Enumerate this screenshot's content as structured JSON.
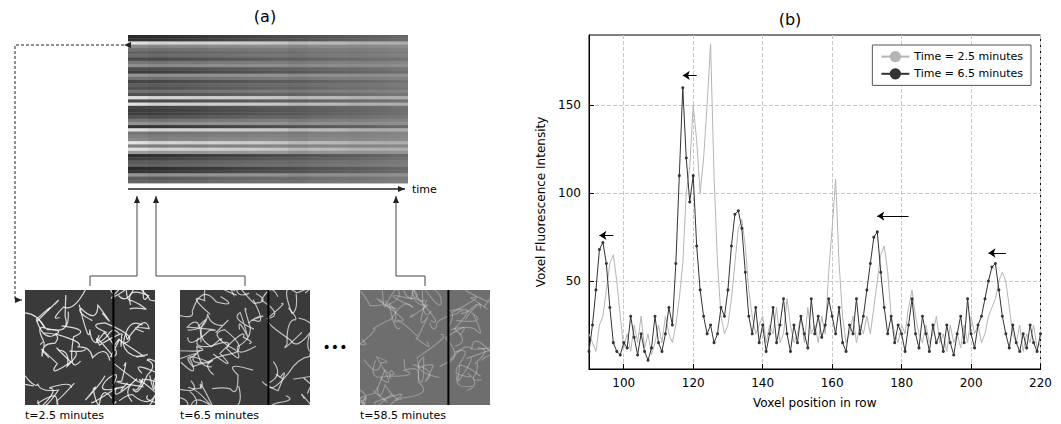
{
  "panel_a": {
    "label": "(a)",
    "axis_label": "time",
    "captions": [
      "t=2.5 minutes",
      "t=6.5 minutes",
      "t=58.5 minutes"
    ],
    "ellipsis": "•••"
  },
  "chart_data": {
    "type": "line",
    "title": "(b)",
    "x_label": "Voxel position in row",
    "y_label": "Voxel Fluorescence Intensity",
    "x": [
      90,
      91,
      92,
      93,
      94,
      95,
      96,
      97,
      98,
      99,
      100,
      101,
      102,
      103,
      104,
      105,
      106,
      107,
      108,
      109,
      110,
      111,
      112,
      113,
      114,
      115,
      116,
      117,
      118,
      119,
      120,
      121,
      122,
      123,
      124,
      125,
      126,
      127,
      128,
      129,
      130,
      131,
      132,
      133,
      134,
      135,
      136,
      137,
      138,
      139,
      140,
      141,
      142,
      143,
      144,
      145,
      146,
      147,
      148,
      149,
      150,
      151,
      152,
      153,
      154,
      155,
      156,
      157,
      158,
      159,
      160,
      161,
      162,
      163,
      164,
      165,
      166,
      167,
      168,
      169,
      170,
      171,
      172,
      173,
      174,
      175,
      176,
      177,
      178,
      179,
      180,
      181,
      182,
      183,
      184,
      185,
      186,
      187,
      188,
      189,
      190,
      191,
      192,
      193,
      194,
      195,
      196,
      197,
      198,
      199,
      200,
      201,
      202,
      203,
      204,
      205,
      206,
      207,
      208,
      209,
      210,
      211,
      212,
      213,
      214,
      215,
      216,
      217,
      218,
      219,
      220
    ],
    "series": [
      {
        "name": "Time = 2.5 minutes",
        "color": "#b5b5b5",
        "marker": "none",
        "line_style": "solid",
        "values": [
          20,
          15,
          10,
          25,
          30,
          45,
          60,
          65,
          50,
          30,
          12,
          20,
          10,
          25,
          15,
          30,
          12,
          20,
          8,
          15,
          25,
          15,
          30,
          20,
          15,
          25,
          40,
          60,
          100,
          115,
          150,
          130,
          100,
          120,
          150,
          185,
          110,
          60,
          30,
          20,
          25,
          40,
          60,
          80,
          85,
          70,
          45,
          30,
          20,
          25,
          30,
          15,
          25,
          20,
          35,
          15,
          20,
          40,
          25,
          15,
          20,
          30,
          15,
          35,
          20,
          25,
          15,
          30,
          20,
          55,
          80,
          108,
          60,
          30,
          15,
          20,
          30,
          15,
          25,
          20,
          30,
          20,
          35,
          50,
          65,
          70,
          55,
          30,
          20,
          15,
          25,
          20,
          35,
          45,
          30,
          20,
          15,
          25,
          15,
          20,
          30,
          15,
          20,
          10,
          25,
          15,
          20,
          12,
          25,
          15,
          30,
          20,
          25,
          15,
          20,
          30,
          35,
          40,
          50,
          55,
          50,
          35,
          20,
          15,
          25,
          10,
          20,
          15,
          25,
          12,
          15
        ]
      },
      {
        "name": "Time = 6.5 minutes",
        "color": "#333333",
        "marker": "circle",
        "line_style": "solid",
        "values": [
          10,
          25,
          45,
          68,
          72,
          60,
          35,
          15,
          10,
          8,
          15,
          12,
          30,
          18,
          8,
          20,
          10,
          5,
          12,
          30,
          15,
          10,
          20,
          35,
          25,
          60,
          110,
          160,
          120,
          95,
          110,
          70,
          45,
          30,
          20,
          25,
          15,
          20,
          35,
          30,
          45,
          70,
          88,
          90,
          80,
          55,
          30,
          20,
          35,
          15,
          25,
          10,
          20,
          35,
          15,
          25,
          40,
          20,
          10,
          25,
          15,
          30,
          20,
          12,
          40,
          20,
          30,
          18,
          25,
          40,
          30,
          20,
          35,
          15,
          10,
          25,
          20,
          40,
          20,
          30,
          45,
          60,
          75,
          78,
          55,
          35,
          20,
          30,
          15,
          25,
          20,
          10,
          25,
          40,
          20,
          12,
          30,
          20,
          10,
          25,
          15,
          20,
          10,
          25,
          15,
          8,
          20,
          30,
          15,
          40,
          20,
          12,
          25,
          30,
          40,
          50,
          58,
          60,
          45,
          30,
          20,
          12,
          25,
          15,
          10,
          20,
          12,
          25,
          15,
          10,
          20
        ]
      }
    ],
    "arrows": [
      {
        "x_from": 97,
        "x_to": 93,
        "y": 76
      },
      {
        "x_from": 121,
        "x_to": 117,
        "y": 167
      },
      {
        "x_from": 182,
        "x_to": 173,
        "y": 87
      },
      {
        "x_from": 210,
        "x_to": 205,
        "y": 66
      }
    ],
    "xlim": [
      90,
      220
    ],
    "xticks": [
      100,
      120,
      140,
      160,
      180,
      200,
      220
    ],
    "ylim": [
      0,
      190
    ],
    "yticks": [
      50,
      100,
      150
    ],
    "grid": true,
    "legend": "upper right"
  }
}
